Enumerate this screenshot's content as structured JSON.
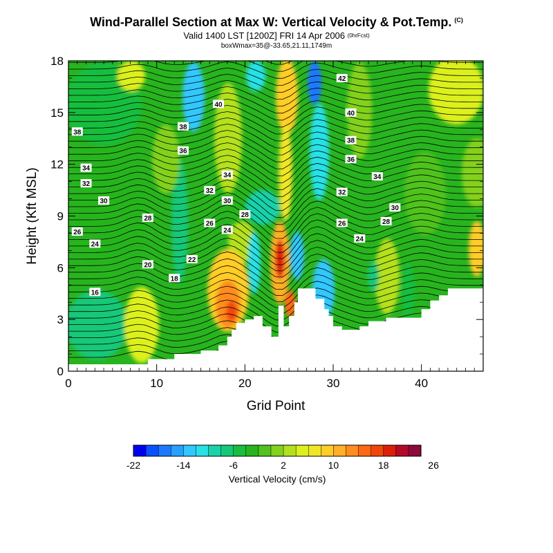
{
  "title": {
    "main": "Wind-Parallel Section at Max W: Vertical Velocity & Pot.Temp.",
    "main_mark": "(C)",
    "valid": "Valid 1400 LST [1200Z] FRI 14 Apr 2006",
    "valid_mark": "(0hrFcst)",
    "box": "boxWmax=35@-33.65,21.11,1749m"
  },
  "chart_data": {
    "type": "heatmap",
    "xlabel": "Grid Point",
    "ylabel": "Height (Kft MSL)",
    "xlim": [
      0,
      47
    ],
    "ylim": [
      0,
      18
    ],
    "x_ticks": [
      0,
      10,
      20,
      30,
      40
    ],
    "x_tick_labels": [
      "0",
      "10",
      "20",
      "30",
      "40"
    ],
    "y_ticks": [
      0,
      3,
      6,
      9,
      12,
      15,
      18
    ],
    "y_tick_labels": [
      "0",
      "3",
      "6",
      "9",
      "12",
      "15",
      "18"
    ],
    "colorbar": {
      "label": "Vertical Velocity (cm/s)",
      "tick_values": [
        -22,
        -14,
        -6,
        2,
        10,
        18,
        26
      ],
      "tick_labels": [
        "-22",
        "-14",
        "-6",
        "2",
        "10",
        "18",
        "26"
      ],
      "colors": [
        "#0000f0",
        "#0a50ff",
        "#1e78ff",
        "#28a0ff",
        "#32c8ff",
        "#28e1e6",
        "#19d2aa",
        "#14c878",
        "#19be3c",
        "#28b41e",
        "#50c31e",
        "#82d21e",
        "#b4e11e",
        "#dcf01e",
        "#f0e628",
        "#ffcd28",
        "#ffaf28",
        "#ff8c1e",
        "#ff6914",
        "#f0460a",
        "#dc1e0a",
        "#b40a28",
        "#8c0a3c"
      ]
    },
    "terrain": [
      [
        0,
        0.4
      ],
      [
        9,
        0.4
      ],
      [
        9,
        0.7
      ],
      [
        12,
        0.7
      ],
      [
        12,
        1.0
      ],
      [
        15,
        1.0
      ],
      [
        15,
        1.2
      ],
      [
        17,
        1.2
      ],
      [
        17,
        1.5
      ],
      [
        18,
        1.5
      ],
      [
        18,
        2.0
      ],
      [
        18.5,
        2.0
      ],
      [
        18.5,
        2.4
      ],
      [
        19,
        2.4
      ],
      [
        19,
        2.8
      ],
      [
        20,
        2.8
      ],
      [
        20,
        3.0
      ],
      [
        21,
        3.0
      ],
      [
        21,
        3.2
      ],
      [
        22,
        3.2
      ],
      [
        22,
        2.6
      ],
      [
        23,
        2.6
      ],
      [
        23,
        2.0
      ],
      [
        23.8,
        2.0
      ],
      [
        23.8,
        3.8
      ],
      [
        24.4,
        3.8
      ],
      [
        24.4,
        2.6
      ],
      [
        25,
        2.6
      ],
      [
        25,
        3.2
      ],
      [
        25.6,
        3.2
      ],
      [
        25.6,
        4.0
      ],
      [
        26,
        4.0
      ],
      [
        26,
        4.8
      ],
      [
        28,
        4.8
      ],
      [
        28,
        4.2
      ],
      [
        29,
        4.2
      ],
      [
        29,
        3.6
      ],
      [
        29.5,
        3.6
      ],
      [
        29.5,
        3.2
      ],
      [
        30,
        3.2
      ],
      [
        30,
        2.6
      ],
      [
        31,
        2.6
      ],
      [
        31,
        2.4
      ],
      [
        33,
        2.4
      ],
      [
        33,
        2.6
      ],
      [
        34,
        2.6
      ],
      [
        34,
        2.9
      ],
      [
        36,
        2.9
      ],
      [
        36,
        3.1
      ],
      [
        40,
        3.1
      ],
      [
        40,
        3.6
      ],
      [
        41,
        3.6
      ],
      [
        41,
        4.1
      ],
      [
        42,
        4.1
      ],
      [
        42,
        4.4
      ],
      [
        43,
        4.4
      ],
      [
        43,
        4.8
      ],
      [
        47,
        4.8
      ]
    ],
    "contour_labels": [
      {
        "x": 1.0,
        "y": 13.9,
        "text": "38"
      },
      {
        "x": 2.0,
        "y": 11.8,
        "text": "34"
      },
      {
        "x": 2.0,
        "y": 10.9,
        "text": "32"
      },
      {
        "x": 4.0,
        "y": 9.9,
        "text": "30"
      },
      {
        "x": 1.0,
        "y": 8.1,
        "text": "26"
      },
      {
        "x": 3.0,
        "y": 7.4,
        "text": "24"
      },
      {
        "x": 3.0,
        "y": 4.6,
        "text": "16"
      },
      {
        "x": 9.0,
        "y": 6.2,
        "text": "20"
      },
      {
        "x": 9.0,
        "y": 8.9,
        "text": "28"
      },
      {
        "x": 12.0,
        "y": 5.4,
        "text": "18"
      },
      {
        "x": 14.0,
        "y": 6.5,
        "text": "22"
      },
      {
        "x": 13.0,
        "y": 12.8,
        "text": "36"
      },
      {
        "x": 13.0,
        "y": 14.2,
        "text": "38"
      },
      {
        "x": 17.0,
        "y": 15.5,
        "text": "40"
      },
      {
        "x": 18.0,
        "y": 11.4,
        "text": "34"
      },
      {
        "x": 16.0,
        "y": 10.5,
        "text": "32"
      },
      {
        "x": 18.0,
        "y": 9.9,
        "text": "30"
      },
      {
        "x": 20.0,
        "y": 9.1,
        "text": "28"
      },
      {
        "x": 16.0,
        "y": 8.6,
        "text": "26"
      },
      {
        "x": 18.0,
        "y": 8.2,
        "text": "24"
      },
      {
        "x": 31.0,
        "y": 17.0,
        "text": "42"
      },
      {
        "x": 32.0,
        "y": 15.0,
        "text": "40"
      },
      {
        "x": 32.0,
        "y": 13.4,
        "text": "38"
      },
      {
        "x": 32.0,
        "y": 12.3,
        "text": "36"
      },
      {
        "x": 35.0,
        "y": 11.3,
        "text": "34"
      },
      {
        "x": 31.0,
        "y": 10.4,
        "text": "32"
      },
      {
        "x": 31.0,
        "y": 8.6,
        "text": "26"
      },
      {
        "x": 33.0,
        "y": 7.7,
        "text": "24"
      },
      {
        "x": 36.0,
        "y": 8.7,
        "text": "28"
      },
      {
        "x": 37.0,
        "y": 9.5,
        "text": "30"
      }
    ]
  }
}
